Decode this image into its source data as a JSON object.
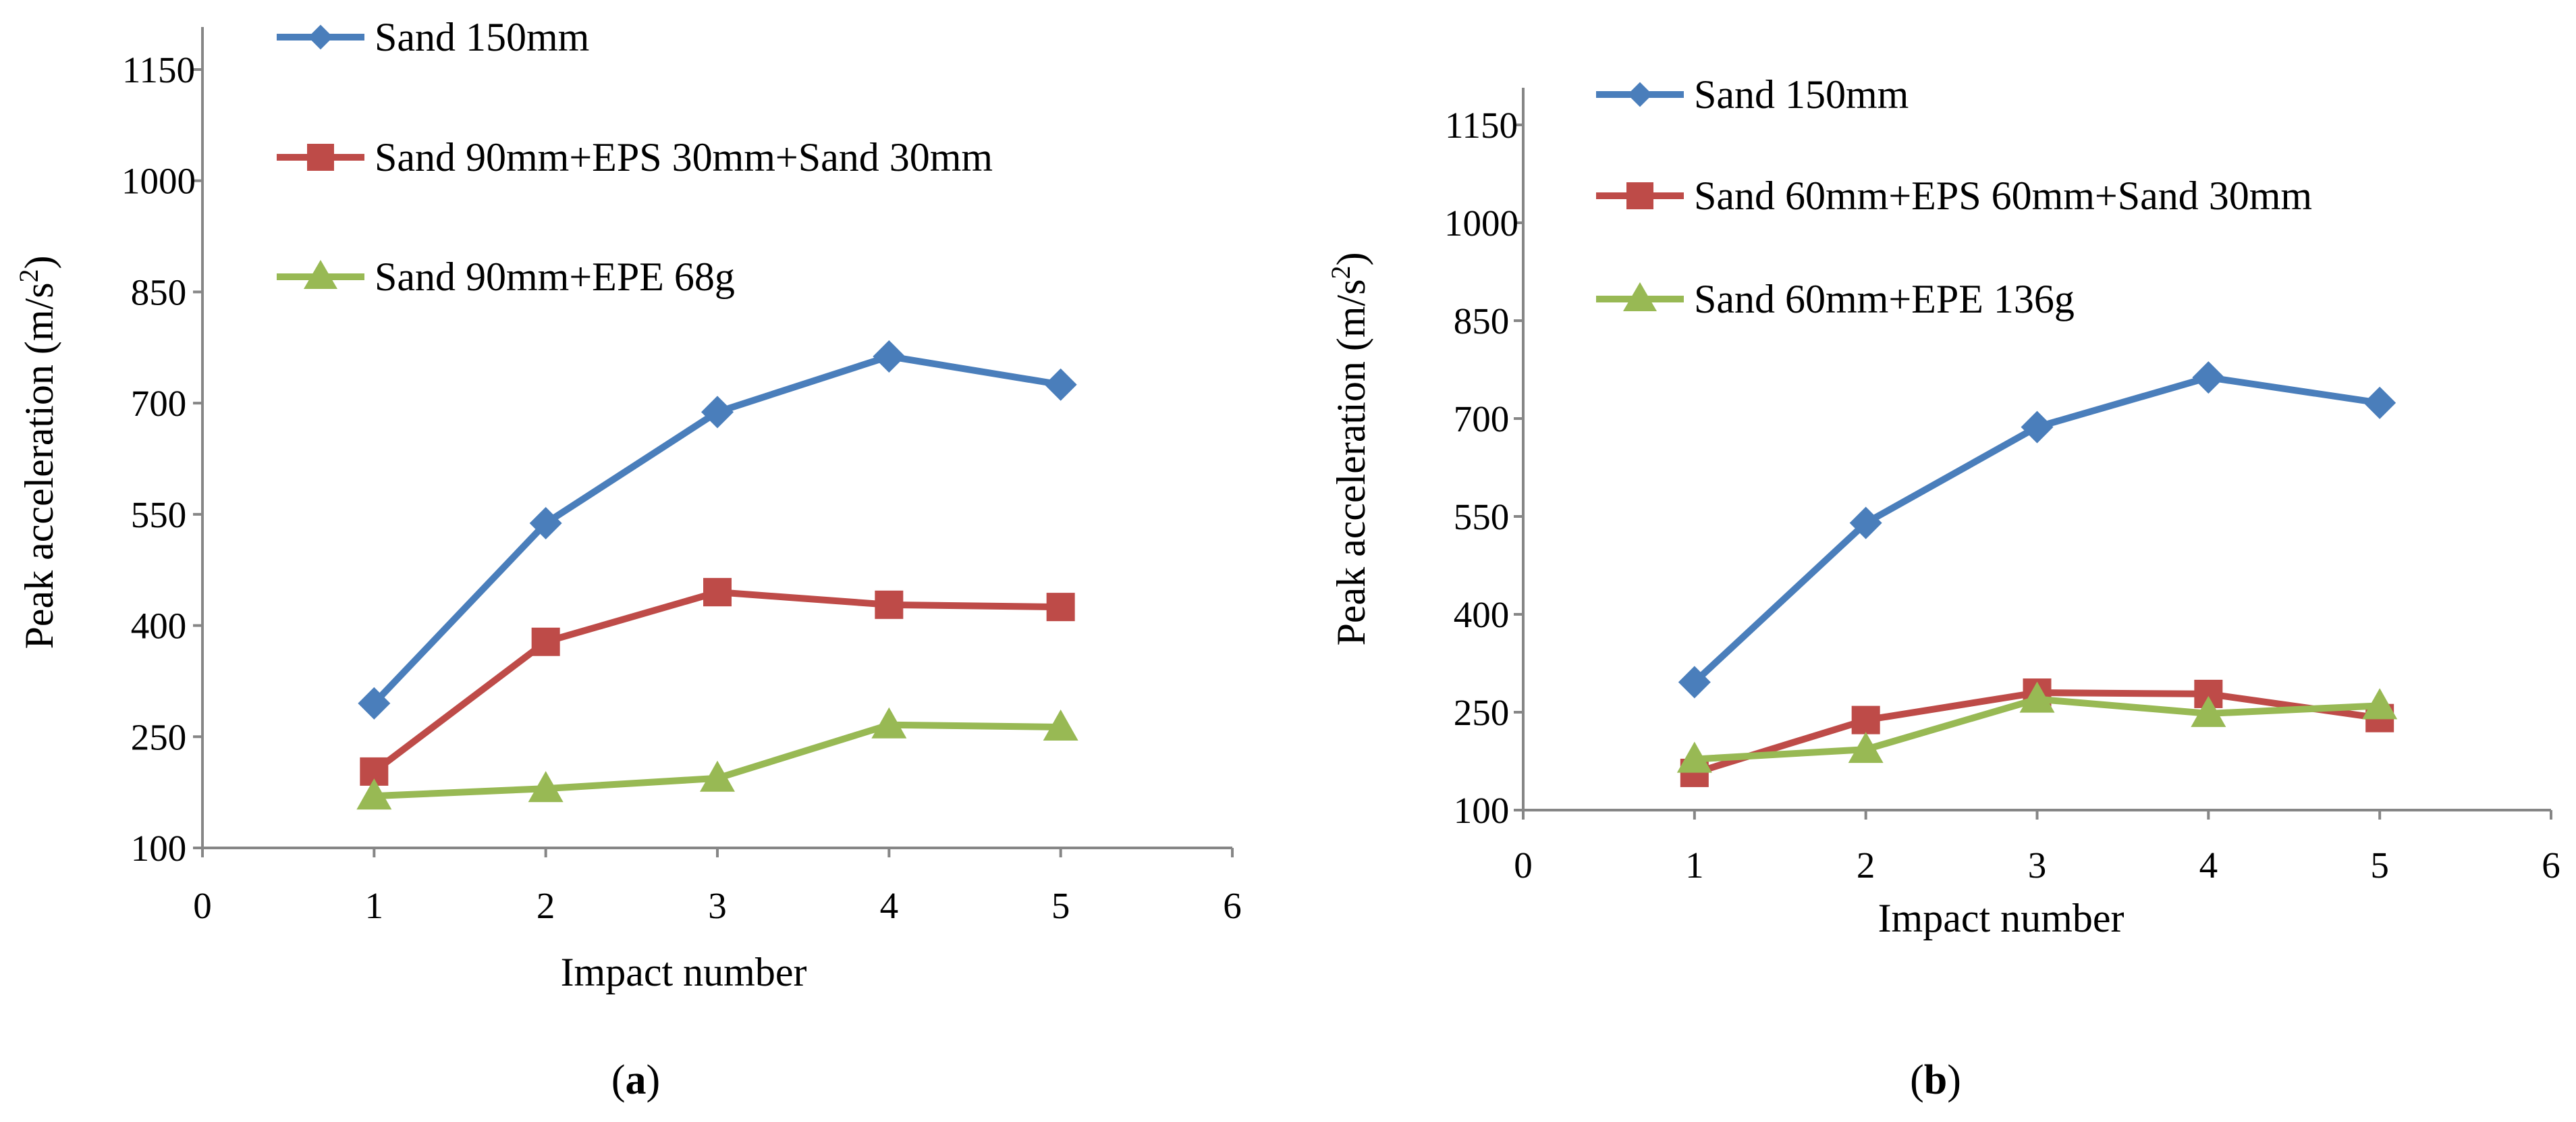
{
  "colors": {
    "sand": "#4a7ebb",
    "eps": "#be4b48",
    "epe": "#98b954",
    "axis": "#868686"
  },
  "chart_data": [
    {
      "type": "line",
      "panel_label": "a",
      "xlabel": "Impact number",
      "ylabel": "Peak acceleration (m/s",
      "ylabel_sup": "2",
      "ylabel_close": ")",
      "xlim": [
        0,
        6
      ],
      "ylim": [
        100,
        1150
      ],
      "xticks": [
        "0",
        "1",
        "2",
        "3",
        "4",
        "5",
        "6"
      ],
      "yticks": [
        "100",
        "250",
        "400",
        "550",
        "700",
        "850",
        "1000",
        "1150"
      ],
      "x": [
        1,
        2,
        3,
        4,
        5
      ],
      "series": [
        {
          "name": "Sand 150mm",
          "marker": "diamond",
          "color_key": "sand",
          "values": [
            295,
            538,
            688,
            763,
            725
          ]
        },
        {
          "name": "Sand 90mm+EPS 30mm+Sand 30mm",
          "marker": "square",
          "color_key": "eps",
          "values": [
            203,
            378,
            445,
            428,
            425
          ]
        },
        {
          "name": "Sand 90mm+EPE 68g",
          "marker": "triangle",
          "color_key": "epe",
          "values": [
            170,
            180,
            194,
            266,
            263
          ]
        }
      ]
    },
    {
      "type": "line",
      "panel_label": "b",
      "xlabel": "Impact number",
      "ylabel": "Peak acceleration (m/s",
      "ylabel_sup": "2",
      "ylabel_close": ")",
      "xlim": [
        0,
        6
      ],
      "ylim": [
        100,
        1150
      ],
      "xticks": [
        "0",
        "1",
        "2",
        "3",
        "4",
        "5",
        "6"
      ],
      "yticks": [
        "100",
        "250",
        "400",
        "550",
        "700",
        "850",
        "1000",
        "1150"
      ],
      "x": [
        1,
        2,
        3,
        4,
        5
      ],
      "series": [
        {
          "name": "Sand 150mm",
          "marker": "diamond",
          "color_key": "sand",
          "values": [
            296,
            540,
            687,
            763,
            724
          ]
        },
        {
          "name": "Sand 60mm+EPS 60mm+Sand 30mm",
          "marker": "square",
          "color_key": "eps",
          "values": [
            157,
            238,
            280,
            278,
            241
          ]
        },
        {
          "name": "Sand 60mm+EPE 136g",
          "marker": "triangle",
          "color_key": "epe",
          "values": [
            178,
            193,
            270,
            248,
            260
          ]
        }
      ]
    }
  ]
}
